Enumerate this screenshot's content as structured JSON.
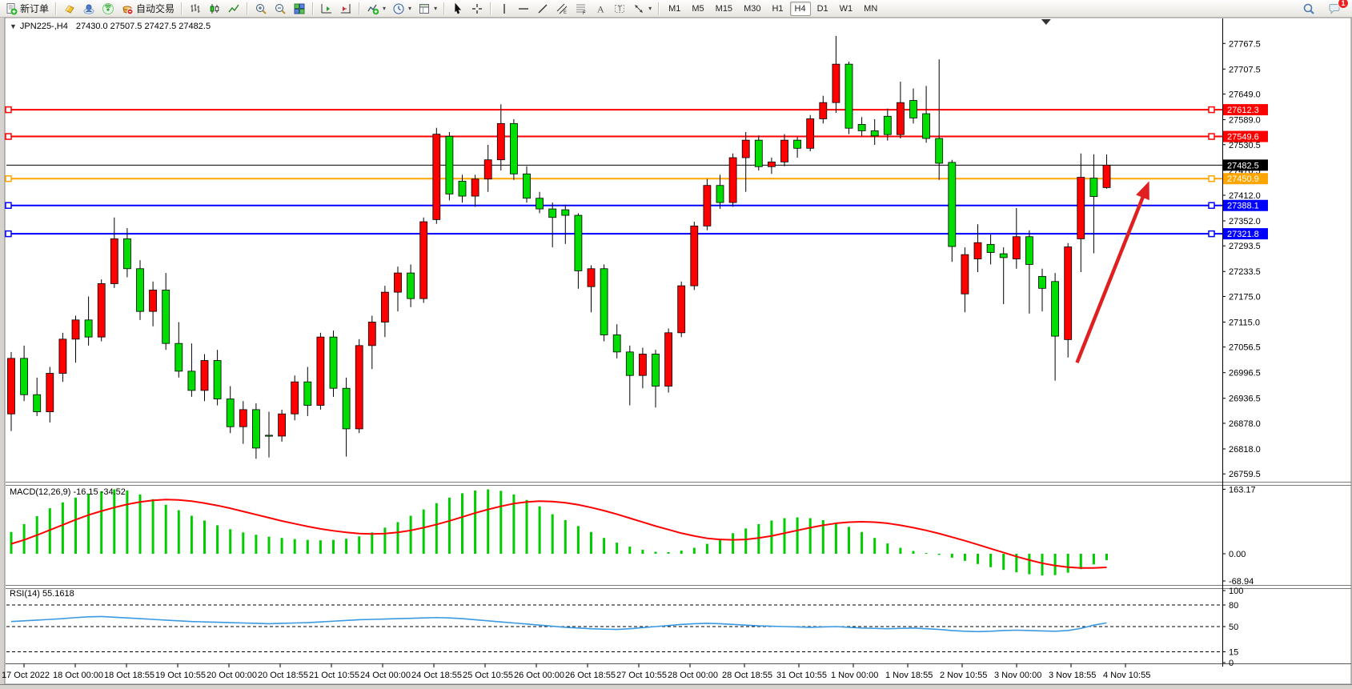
{
  "toolbar": {
    "items": [
      {
        "name": "new-order-button",
        "icon": "new-order-icon",
        "label": "新订单"
      },
      {
        "sep": true
      },
      {
        "name": "market-button",
        "icon": "market-icon"
      },
      {
        "name": "community-button",
        "icon": "community-icon"
      },
      {
        "name": "signals-button",
        "icon": "signals-icon"
      },
      {
        "name": "autotrading-button",
        "icon": "autotrading-icon",
        "label": "自动交易"
      },
      {
        "sep": true
      },
      {
        "name": "bar-chart-button",
        "icon": "bar-chart-icon"
      },
      {
        "name": "candlestick-chart-button",
        "icon": "candlestick-icon"
      },
      {
        "name": "line-chart-button",
        "icon": "line-chart-icon"
      },
      {
        "sep": true
      },
      {
        "name": "zoom-in-button",
        "icon": "zoom-in-icon"
      },
      {
        "name": "zoom-out-button",
        "icon": "zoom-out-icon"
      },
      {
        "name": "tile-windows-button",
        "icon": "tile-windows-icon"
      },
      {
        "sep": true
      },
      {
        "name": "auto-scroll-button",
        "icon": "auto-scroll-icon"
      },
      {
        "name": "chart-shift-button",
        "icon": "chart-shift-icon"
      },
      {
        "sep": true
      },
      {
        "name": "indicators-button",
        "icon": "indicators-icon",
        "caret": true
      },
      {
        "name": "periods-button",
        "icon": "clock-icon",
        "caret": true
      },
      {
        "name": "templates-button",
        "icon": "template-icon",
        "caret": true
      },
      {
        "sep": true
      },
      {
        "name": "cursor-button",
        "icon": "cursor-icon"
      },
      {
        "name": "crosshair-button",
        "icon": "crosshair-icon"
      },
      {
        "sep": true
      },
      {
        "name": "vertical-line-button",
        "icon": "vertical-line-icon"
      },
      {
        "name": "horizontal-line-button",
        "icon": "horizontal-line-icon"
      },
      {
        "name": "trendline-button",
        "icon": "trendline-icon"
      },
      {
        "name": "equidistant-channel-button",
        "icon": "channel-icon"
      },
      {
        "name": "fibonacci-button",
        "icon": "fibonacci-icon"
      },
      {
        "name": "text-button",
        "icon": "text-icon"
      },
      {
        "name": "text-label-button",
        "icon": "label-icon"
      },
      {
        "name": "arrows-button",
        "icon": "arrows-icon",
        "caret": true
      },
      {
        "sep": true
      }
    ],
    "timeframes": [
      "M1",
      "M5",
      "M15",
      "M30",
      "H1",
      "H4",
      "D1",
      "W1",
      "MN"
    ],
    "active_timeframe": "H4",
    "notification_count": "1"
  },
  "chart": {
    "title": "JPN225-,H4",
    "ohlc_text": "27430.0 27507.5 27427.5 27482.5",
    "macd_label": "MACD(12,26,9) -16.15 -34.52",
    "rsi_label": "RSI(14) 55.1618"
  },
  "chart_data": [
    {
      "type": "candlestick",
      "symbol": "JPN225-",
      "timeframe": "H4",
      "last_ohlc": {
        "open": 27430.0,
        "high": 27507.5,
        "low": 27427.5,
        "close": 27482.5
      },
      "bull_color": "#ff0000",
      "bear_color": "#00dd00",
      "wick_color": "#000000",
      "ylim": [
        26743,
        27813
      ],
      "y_ticks": [
        27767.5,
        27707.5,
        27649.0,
        27589.0,
        27530.5,
        27470.5,
        27412.0,
        27352.0,
        27293.5,
        27233.5,
        27175.0,
        27115.0,
        27056.5,
        26996.5,
        26936.5,
        26878.0,
        26818.0,
        26759.5
      ],
      "x_labels": [
        "17 Oct 2022",
        "18 Oct 00:00",
        "18 Oct 18:55",
        "19 Oct 10:55",
        "20 Oct 00:00",
        "20 Oct 18:55",
        "21 Oct 10:55",
        "24 Oct 00:00",
        "24 Oct 18:55",
        "25 Oct 10:55",
        "26 Oct 00:00",
        "26 Oct 18:55",
        "27 Oct 10:55",
        "28 Oct 00:00",
        "28 Oct 18:55",
        "31 Oct 10:55",
        "1 Nov 00:00",
        "1 Nov 18:55",
        "2 Nov 10:55",
        "3 Nov 00:00",
        "3 Nov 18:55",
        "4 Nov 10:55"
      ],
      "hlines": [
        {
          "price": 27612.3,
          "color": "#ff0000",
          "width": 2,
          "badge": "27612.3",
          "handles": true
        },
        {
          "price": 27549.6,
          "color": "#ff0000",
          "width": 2,
          "badge": "27549.6",
          "handles": true
        },
        {
          "price": 27482.5,
          "color": "#000000",
          "width": 1,
          "badge": "27482.5",
          "handles": false
        },
        {
          "price": 27450.9,
          "color": "#ffa500",
          "width": 2,
          "badge": "27450.9",
          "handles": true
        },
        {
          "price": 27388.1,
          "color": "#0000ff",
          "width": 2,
          "badge": "27388.1",
          "handles": true
        },
        {
          "price": 27321.8,
          "color": "#0000ff",
          "width": 2,
          "badge": "27321.8",
          "handles": true
        }
      ],
      "arrow": {
        "from_bar": 82.7,
        "from_price": 27020,
        "to_bar": 88.3,
        "to_price": 27445,
        "color": "#e02020"
      },
      "shift_marker_bar": 80.3,
      "candles": [
        [
          26900,
          27045,
          26860,
          27030
        ],
        [
          27030,
          27060,
          26930,
          26945
        ],
        [
          26945,
          26985,
          26895,
          26905
        ],
        [
          26905,
          27010,
          26880,
          26995
        ],
        [
          26995,
          27090,
          26975,
          27075
        ],
        [
          27075,
          27130,
          27020,
          27120
        ],
        [
          27120,
          27175,
          27060,
          27080
        ],
        [
          27080,
          27215,
          27070,
          27205
        ],
        [
          27205,
          27360,
          27195,
          27310
        ],
        [
          27310,
          27335,
          27220,
          27240
        ],
        [
          27240,
          27260,
          27120,
          27140
        ],
        [
          27140,
          27210,
          27105,
          27190
        ],
        [
          27190,
          27230,
          27050,
          27065
        ],
        [
          27065,
          27115,
          26985,
          27000
        ],
        [
          27000,
          27065,
          26940,
          26955
        ],
        [
          26955,
          27040,
          26930,
          27025
        ],
        [
          27025,
          27050,
          26920,
          26935
        ],
        [
          26935,
          26965,
          26855,
          26870
        ],
        [
          26870,
          26930,
          26830,
          26910
        ],
        [
          26910,
          26925,
          26795,
          26820
        ],
        [
          26850,
          26905,
          26798,
          26848
        ],
        [
          26848,
          26910,
          26835,
          26900
        ],
        [
          26900,
          26990,
          26885,
          26975
        ],
        [
          26975,
          27010,
          26895,
          26920
        ],
        [
          26920,
          27090,
          26910,
          27080
        ],
        [
          27080,
          27095,
          26940,
          26960
        ],
        [
          26960,
          26985,
          26800,
          26865
        ],
        [
          26865,
          27075,
          26855,
          27060
        ],
        [
          27060,
          27130,
          27005,
          27115
        ],
        [
          27115,
          27200,
          27080,
          27185
        ],
        [
          27185,
          27245,
          27140,
          27230
        ],
        [
          27230,
          27250,
          27150,
          27170
        ],
        [
          27170,
          27360,
          27160,
          27350
        ],
        [
          27355,
          27570,
          27345,
          27555
        ],
        [
          27550,
          27560,
          27400,
          27415
        ],
        [
          27445,
          27460,
          27395,
          27410
        ],
        [
          27410,
          27460,
          27385,
          27450
        ],
        [
          27450,
          27530,
          27420,
          27495
        ],
        [
          27495,
          27625,
          27470,
          27580
        ],
        [
          27580,
          27590,
          27448,
          27462
        ],
        [
          27462,
          27480,
          27395,
          27405
        ],
        [
          27405,
          27420,
          27370,
          27380
        ],
        [
          27380,
          27395,
          27290,
          27360
        ],
        [
          27378,
          27390,
          27298,
          27365
        ],
        [
          27365,
          27370,
          27193,
          27235
        ],
        [
          27198,
          27248,
          27138,
          27240
        ],
        [
          27240,
          27250,
          27070,
          27085
        ],
        [
          27085,
          27110,
          27030,
          27045
        ],
        [
          27045,
          27060,
          26920,
          26990
        ],
        [
          26990,
          27055,
          26960,
          27040
        ],
        [
          27040,
          27050,
          26915,
          26965
        ],
        [
          26965,
          27100,
          26950,
          27090
        ],
        [
          27090,
          27210,
          27080,
          27200
        ],
        [
          27200,
          27350,
          27190,
          27340
        ],
        [
          27340,
          27450,
          27330,
          27435
        ],
        [
          27435,
          27460,
          27380,
          27395
        ],
        [
          27395,
          27510,
          27385,
          27500
        ],
        [
          27500,
          27560,
          27420,
          27541
        ],
        [
          27541,
          27552,
          27470,
          27479
        ],
        [
          27479,
          27500,
          27462,
          27490
        ],
        [
          27490,
          27555,
          27480,
          27541
        ],
        [
          27541,
          27548,
          27500,
          27522
        ],
        [
          27522,
          27600,
          27515,
          27591
        ],
        [
          27591,
          27645,
          27580,
          27629
        ],
        [
          27629,
          27785,
          27605,
          27719
        ],
        [
          27719,
          27725,
          27555,
          27569
        ],
        [
          27578,
          27595,
          27550,
          27563
        ],
        [
          27563,
          27590,
          27530,
          27551
        ],
        [
          27597,
          27615,
          27540,
          27554
        ],
        [
          27554,
          27678,
          27545,
          27629
        ],
        [
          27634,
          27662,
          27580,
          27593
        ],
        [
          27603,
          27668,
          27535,
          27545
        ],
        [
          27545,
          27730,
          27448,
          27487
        ],
        [
          27489,
          27495,
          27256,
          27292
        ],
        [
          27181,
          27290,
          27138,
          27273
        ],
        [
          27263,
          27344,
          27232,
          27301
        ],
        [
          27297,
          27320,
          27250,
          27278
        ],
        [
          27275,
          27290,
          27157,
          27266
        ],
        [
          27263,
          27382,
          27240,
          27315
        ],
        [
          27315,
          27330,
          27135,
          27250
        ],
        [
          27222,
          27240,
          27140,
          27194
        ],
        [
          27210,
          27230,
          26978,
          27082
        ],
        [
          27074,
          27300,
          27032,
          27291
        ],
        [
          27310,
          27510,
          27232,
          27454
        ],
        [
          27452,
          27508,
          27276,
          27409
        ],
        [
          27430,
          27507.5,
          27427.5,
          27482.5
        ]
      ]
    },
    {
      "type": "macd",
      "params": "12,26,9",
      "current_macd": -16.15,
      "current_signal": -34.52,
      "ylim": [
        -75,
        170
      ],
      "y_ticks": [
        "163.17",
        "0.00",
        "-68.94"
      ],
      "y_tick_values": [
        163.17,
        0.0,
        -68.94
      ],
      "histogram_color": "#00cc00",
      "signal_color": "#ff0000",
      "histogram": [
        55,
        75,
        95,
        115,
        130,
        142,
        152,
        158,
        163,
        160,
        150,
        138,
        124,
        110,
        96,
        84,
        72,
        62,
        54,
        48,
        43,
        40,
        37,
        35,
        34,
        35,
        38,
        44,
        54,
        66,
        80,
        96,
        112,
        128,
        142,
        153,
        160,
        163,
        159,
        150,
        136,
        120,
        100,
        85,
        70,
        55,
        40,
        28,
        18,
        10,
        5,
        4,
        8,
        15,
        25,
        38,
        52,
        64,
        75,
        84,
        90,
        92,
        90,
        85,
        78,
        68,
        55,
        40,
        26,
        15,
        7,
        2,
        -3,
        -10,
        -18,
        -26,
        -34,
        -41,
        -47,
        -52,
        -55,
        -54,
        -48,
        -39,
        -27,
        -16.15
      ],
      "signal": [
        25,
        35,
        47,
        60,
        73,
        86,
        98,
        108,
        117,
        125,
        131,
        135,
        137,
        136,
        133,
        128,
        122,
        115,
        107,
        99,
        91,
        83,
        76,
        69,
        63,
        58,
        54,
        51,
        50,
        51,
        54,
        59,
        66,
        74,
        83,
        93,
        103,
        112,
        120,
        127,
        131,
        133,
        132,
        129,
        124,
        117,
        109,
        100,
        90,
        80,
        70,
        61,
        52,
        45,
        39,
        36,
        35,
        36,
        40,
        45,
        52,
        59,
        66,
        72,
        77,
        80,
        81,
        80,
        77,
        72,
        66,
        59,
        51,
        42,
        33,
        23,
        13,
        3,
        -7,
        -16,
        -24,
        -30,
        -34,
        -36,
        -36,
        -34.52
      ]
    },
    {
      "type": "rsi",
      "period": 14,
      "current": 55.1618,
      "ylim": [
        0,
        100
      ],
      "y_ticks": [
        100,
        80,
        50,
        15,
        0
      ],
      "levels": [
        80,
        50,
        15
      ],
      "line_color": "#3b9ae1",
      "values": [
        57,
        58,
        59,
        60,
        61,
        62.5,
        63.5,
        64,
        63,
        62,
        61,
        60,
        59,
        58,
        57,
        56.5,
        56,
        55.5,
        55,
        54.5,
        54,
        54.5,
        55,
        55.5,
        56.5,
        57.5,
        58.5,
        59.5,
        60,
        60.5,
        61,
        61.5,
        62,
        62.5,
        62,
        61,
        59.5,
        58,
        56.5,
        55,
        53.5,
        52,
        50.5,
        49,
        48,
        47,
        46.5,
        46,
        47,
        48.5,
        50,
        51.5,
        53,
        54,
        54.5,
        54,
        53,
        52,
        51,
        50.5,
        50,
        49.5,
        49,
        49.5,
        50,
        49,
        48,
        47.5,
        47,
        47.5,
        48,
        47,
        46,
        44.5,
        43.5,
        43,
        43.5,
        44.5,
        45,
        44.5,
        44,
        43.5,
        44.5,
        47.5,
        52,
        55.16
      ]
    }
  ]
}
